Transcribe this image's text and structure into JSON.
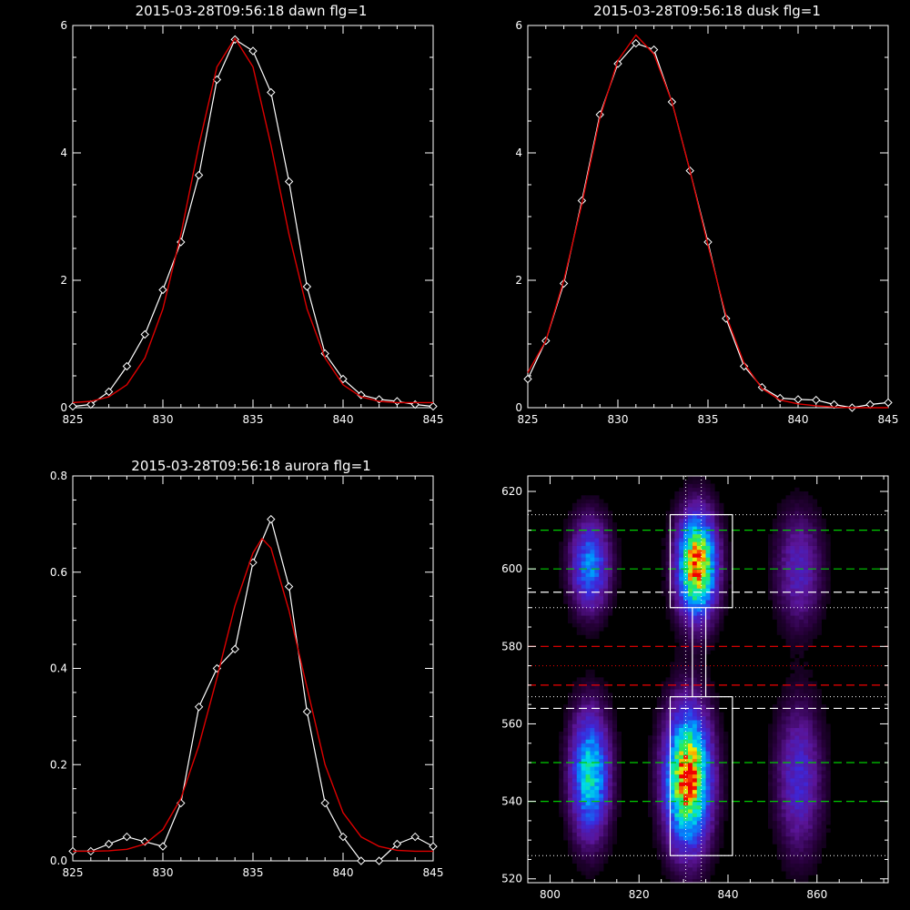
{
  "colors": {
    "background": "#000000",
    "axes": "#ffffff",
    "data_line": "#ffffff",
    "fit_line": "#dd0000",
    "green_dash": "#00cc00",
    "red_dash": "#ee0000",
    "white_dash": "#ffffff"
  },
  "chart_data": [
    {
      "type": "line",
      "title": "2015-03-28T09:56:18 dawn flg=1",
      "xlim": [
        825,
        845
      ],
      "ylim": [
        0,
        6
      ],
      "xticks": [
        "825",
        "830",
        "835",
        "840",
        "845"
      ],
      "yticks": [
        "0",
        "2",
        "4",
        "6"
      ],
      "series": [
        {
          "style": "white-diamonds",
          "x": [
            825,
            826,
            827,
            828,
            829,
            830,
            831,
            832,
            833,
            834,
            835,
            836,
            837,
            838,
            839,
            840,
            841,
            842,
            843,
            844,
            845
          ],
          "y": [
            0.02,
            0.05,
            0.25,
            0.65,
            1.15,
            1.85,
            2.6,
            3.65,
            5.15,
            5.78,
            5.6,
            4.95,
            3.55,
            1.9,
            0.85,
            0.45,
            0.2,
            0.13,
            0.1,
            0.05,
            0.02
          ]
        },
        {
          "style": "red-fit",
          "x": [
            825,
            826,
            827,
            828,
            829,
            830,
            831,
            832,
            833,
            834,
            835,
            836,
            837,
            838,
            839,
            840,
            841,
            842,
            843,
            844,
            845
          ],
          "y": [
            0.08,
            0.1,
            0.17,
            0.36,
            0.78,
            1.55,
            2.72,
            4.12,
            5.35,
            5.8,
            5.35,
            4.12,
            2.72,
            1.55,
            0.78,
            0.36,
            0.17,
            0.1,
            0.08,
            0.08,
            0.08
          ]
        }
      ]
    },
    {
      "type": "line",
      "title": "2015-03-28T09:56:18 dusk flg=1",
      "xlim": [
        825,
        845
      ],
      "ylim": [
        0,
        6
      ],
      "xticks": [
        "825",
        "830",
        "835",
        "840",
        "845"
      ],
      "yticks": [
        "0",
        "2",
        "4",
        "6"
      ],
      "series": [
        {
          "style": "white-diamonds",
          "x": [
            825,
            826,
            827,
            828,
            829,
            830,
            831,
            832,
            833,
            834,
            835,
            836,
            837,
            838,
            839,
            840,
            841,
            842,
            843,
            844,
            845
          ],
          "y": [
            0.45,
            1.05,
            1.95,
            3.25,
            4.6,
            5.4,
            5.72,
            5.62,
            4.8,
            3.72,
            2.6,
            1.4,
            0.65,
            0.32,
            0.15,
            0.13,
            0.12,
            0.05,
            0.0,
            0.05,
            0.08
          ]
        },
        {
          "style": "red-fit",
          "x": [
            825,
            826,
            827,
            828,
            829,
            830,
            831,
            832,
            833,
            834,
            835,
            836,
            837,
            838,
            839,
            840,
            841,
            842,
            843,
            844,
            845
          ],
          "y": [
            0.55,
            1.05,
            2.0,
            3.2,
            4.55,
            5.45,
            5.85,
            5.55,
            4.8,
            3.72,
            2.55,
            1.45,
            0.7,
            0.3,
            0.12,
            0.06,
            0.03,
            0.01,
            0.0,
            0.0,
            0.0
          ]
        }
      ]
    },
    {
      "type": "line",
      "title": "2015-03-28T09:56:18 aurora flg=1",
      "xlim": [
        825,
        845
      ],
      "ylim": [
        0,
        0.8
      ],
      "xticks": [
        "825",
        "830",
        "835",
        "840",
        "845"
      ],
      "yticks": [
        "0.0",
        "0.2",
        "0.4",
        "0.6",
        "0.8"
      ],
      "series": [
        {
          "style": "white-diamonds",
          "x": [
            825,
            826,
            827,
            828,
            829,
            830,
            831,
            832,
            833,
            834,
            835,
            836,
            837,
            838,
            839,
            840,
            841,
            842,
            843,
            844,
            845
          ],
          "y": [
            0.02,
            0.02,
            0.035,
            0.05,
            0.04,
            0.03,
            0.12,
            0.32,
            0.4,
            0.44,
            0.62,
            0.71,
            0.57,
            0.31,
            0.12,
            0.05,
            0.0,
            0.0,
            0.035,
            0.05,
            0.03
          ]
        },
        {
          "style": "red-fit",
          "x": [
            825,
            826,
            827,
            828,
            829,
            830,
            831,
            832,
            833,
            834,
            835,
            835.5,
            836,
            837,
            838,
            839,
            840,
            841,
            842,
            843,
            844,
            845
          ],
          "y": [
            0.02,
            0.02,
            0.021,
            0.024,
            0.035,
            0.065,
            0.13,
            0.24,
            0.38,
            0.53,
            0.64,
            0.67,
            0.65,
            0.52,
            0.36,
            0.2,
            0.1,
            0.05,
            0.03,
            0.022,
            0.02,
            0.02
          ]
        }
      ]
    },
    {
      "type": "heatmap",
      "title": "",
      "xlim": [
        795,
        876
      ],
      "ylim": [
        519,
        624
      ],
      "xticks": [
        "800",
        "820",
        "840",
        "860"
      ],
      "yticks": [
        "520",
        "540",
        "560",
        "580",
        "600",
        "620"
      ],
      "blobs": [
        {
          "x": 809,
          "y": 601,
          "sx": 3,
          "sy": 8,
          "amp": 0.5
        },
        {
          "x": 809,
          "y": 547,
          "sx": 3,
          "sy": 11,
          "amp": 0.65
        },
        {
          "x": 833,
          "y": 601,
          "sx": 3,
          "sy": 9,
          "amp": 1.0
        },
        {
          "x": 831,
          "y": 546,
          "sx": 3.5,
          "sy": 12,
          "amp": 1.0
        },
        {
          "x": 856,
          "y": 600,
          "sx": 3.5,
          "sy": 10,
          "amp": 0.28
        },
        {
          "x": 856,
          "y": 546,
          "sx": 3.5,
          "sy": 13,
          "amp": 0.32
        }
      ],
      "h_lines": [
        {
          "y": 610,
          "style": "green-dash"
        },
        {
          "y": 600,
          "style": "green-dash"
        },
        {
          "y": 594,
          "style": "white-dash"
        },
        {
          "y": 580,
          "style": "red-dash"
        },
        {
          "y": 570,
          "style": "red-dash"
        },
        {
          "y": 564,
          "style": "white-dash"
        },
        {
          "y": 550,
          "style": "green-dash"
        },
        {
          "y": 540,
          "style": "green-dash"
        },
        {
          "y": 614,
          "style": "white-dot"
        },
        {
          "y": 590,
          "style": "white-dot"
        },
        {
          "y": 575,
          "style": "red-dot"
        },
        {
          "y": 567,
          "style": "white-dot"
        },
        {
          "y": 526,
          "style": "white-dot"
        }
      ],
      "v_lines": [
        {
          "x": 830.5,
          "style": "white-dot"
        },
        {
          "x": 834,
          "style": "white-dot"
        }
      ],
      "boxes": [
        {
          "x0": 827,
          "x1": 841,
          "y0": 590,
          "y1": 614
        },
        {
          "x0": 827,
          "x1": 841,
          "y0": 526,
          "y1": 567
        }
      ]
    }
  ]
}
